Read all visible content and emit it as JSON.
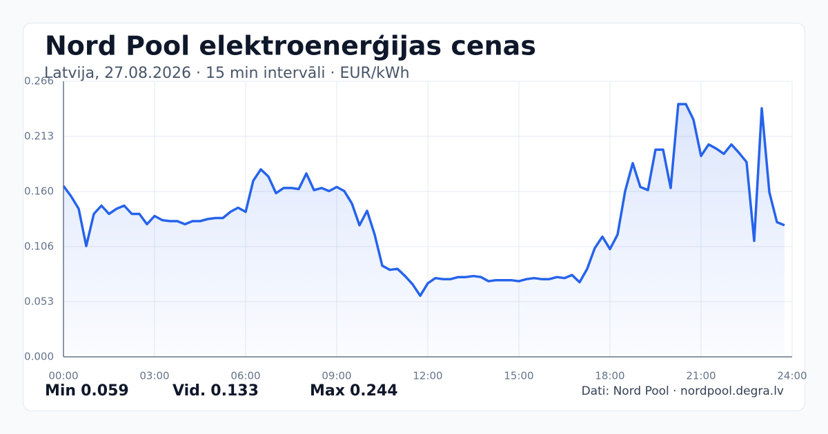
{
  "chart_data": {
    "type": "area-line",
    "title": "Nord Pool elektroenerģijas cenas",
    "subtitle": "Latvija, 27.08.2026 · 15 min intervāli · EUR/kWh",
    "color": "#2563eb",
    "grid": true,
    "xlim": [
      0,
      24
    ],
    "xticks": [
      {
        "value": 0,
        "label": "00:00"
      },
      {
        "value": 3,
        "label": "03:00"
      },
      {
        "value": 6,
        "label": "06:00"
      },
      {
        "value": 9,
        "label": "09:00"
      },
      {
        "value": 12,
        "label": "12:00"
      },
      {
        "value": 15,
        "label": "15:00"
      },
      {
        "value": 18,
        "label": "18:00"
      },
      {
        "value": 21,
        "label": "21:00"
      },
      {
        "value": 24,
        "label": "24:00"
      }
    ],
    "ylim": [
      0,
      0.266
    ],
    "yticks": [
      {
        "value": 0,
        "label": "0.000"
      },
      {
        "value": 0.0532,
        "label": "0.053"
      },
      {
        "value": 0.1064,
        "label": "0.106"
      },
      {
        "value": 0.1596,
        "label": "0.160"
      },
      {
        "value": 0.2128,
        "label": "0.213"
      },
      {
        "value": 0.266,
        "label": "0.266"
      }
    ],
    "x": [
      0,
      0.25,
      0.5,
      0.75,
      1,
      1.25,
      1.5,
      1.75,
      2,
      2.25,
      2.5,
      2.75,
      3,
      3.25,
      3.5,
      3.75,
      4,
      4.25,
      4.5,
      4.75,
      5,
      5.25,
      5.5,
      5.75,
      6,
      6.25,
      6.5,
      6.75,
      7,
      7.25,
      7.5,
      7.75,
      8,
      8.25,
      8.5,
      8.75,
      9,
      9.25,
      9.5,
      9.75,
      10,
      10.25,
      10.5,
      10.75,
      11,
      11.25,
      11.5,
      11.75,
      12,
      12.25,
      12.5,
      12.75,
      13,
      13.25,
      13.5,
      13.75,
      14,
      14.25,
      14.5,
      14.75,
      15,
      15.25,
      15.5,
      15.75,
      16,
      16.25,
      16.5,
      16.75,
      17,
      17.25,
      17.5,
      17.75,
      18,
      18.25,
      18.5,
      18.75,
      19,
      19.25,
      19.5,
      19.75,
      20,
      20.25,
      20.5,
      20.75,
      21,
      21.25,
      21.5,
      21.75,
      22,
      22.25,
      22.5,
      22.75,
      23,
      23.25,
      23.5,
      23.75
    ],
    "values": [
      0.165,
      0.155,
      0.143,
      0.107,
      0.138,
      0.146,
      0.138,
      0.143,
      0.146,
      0.138,
      0.138,
      0.128,
      0.136,
      0.132,
      0.131,
      0.131,
      0.128,
      0.131,
      0.131,
      0.133,
      0.134,
      0.134,
      0.14,
      0.144,
      0.14,
      0.17,
      0.181,
      0.174,
      0.158,
      0.163,
      0.163,
      0.162,
      0.177,
      0.161,
      0.163,
      0.16,
      0.164,
      0.16,
      0.148,
      0.127,
      0.141,
      0.118,
      0.088,
      0.084,
      0.085,
      0.078,
      0.07,
      0.059,
      0.071,
      0.076,
      0.075,
      0.075,
      0.077,
      0.077,
      0.078,
      0.077,
      0.073,
      0.074,
      0.074,
      0.074,
      0.073,
      0.075,
      0.076,
      0.075,
      0.075,
      0.077,
      0.076,
      0.079,
      0.072,
      0.085,
      0.105,
      0.116,
      0.104,
      0.118,
      0.16,
      0.187,
      0.164,
      0.161,
      0.2,
      0.2,
      0.163,
      0.244,
      0.244,
      0.229,
      0.194,
      0.205,
      0.201,
      0.196,
      0.205,
      0.197,
      0.188,
      0.112,
      0.24,
      0.159,
      0.13,
      0.127
    ],
    "stats": [
      {
        "label": "Min",
        "value": 0.059
      },
      {
        "label": "Vid.",
        "value": 0.133
      },
      {
        "label": "Max",
        "value": 0.244
      }
    ],
    "source": "Dati: Nord Pool · nordpool.degra.lv"
  }
}
